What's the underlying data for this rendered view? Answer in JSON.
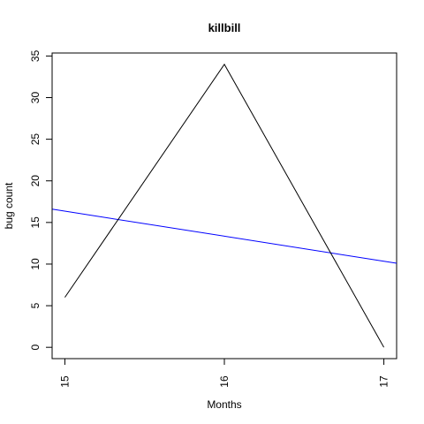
{
  "chart_data": {
    "type": "line",
    "title": "killbill",
    "xlabel": "Months",
    "ylabel": "bug count",
    "xlim": [
      14.92,
      17.08
    ],
    "ylim": [
      -1.36,
      35.36
    ],
    "x_ticks": [
      15,
      16,
      17
    ],
    "x_tick_labels": [
      "15",
      "16",
      "17"
    ],
    "y_ticks": [
      0,
      5,
      10,
      15,
      20,
      25,
      30,
      35
    ],
    "y_tick_labels": [
      "0",
      "5",
      "10",
      "15",
      "20",
      "25",
      "30",
      "35"
    ],
    "grid": false,
    "legend": "none",
    "series": [
      {
        "color": "#000000",
        "x": [
          15,
          16,
          17
        ],
        "y": [
          6,
          34,
          0
        ]
      }
    ],
    "trend_line": {
      "color": "#0000ff",
      "x": [
        14.92,
        17.08
      ],
      "y": [
        16.6,
        10.1
      ]
    }
  }
}
